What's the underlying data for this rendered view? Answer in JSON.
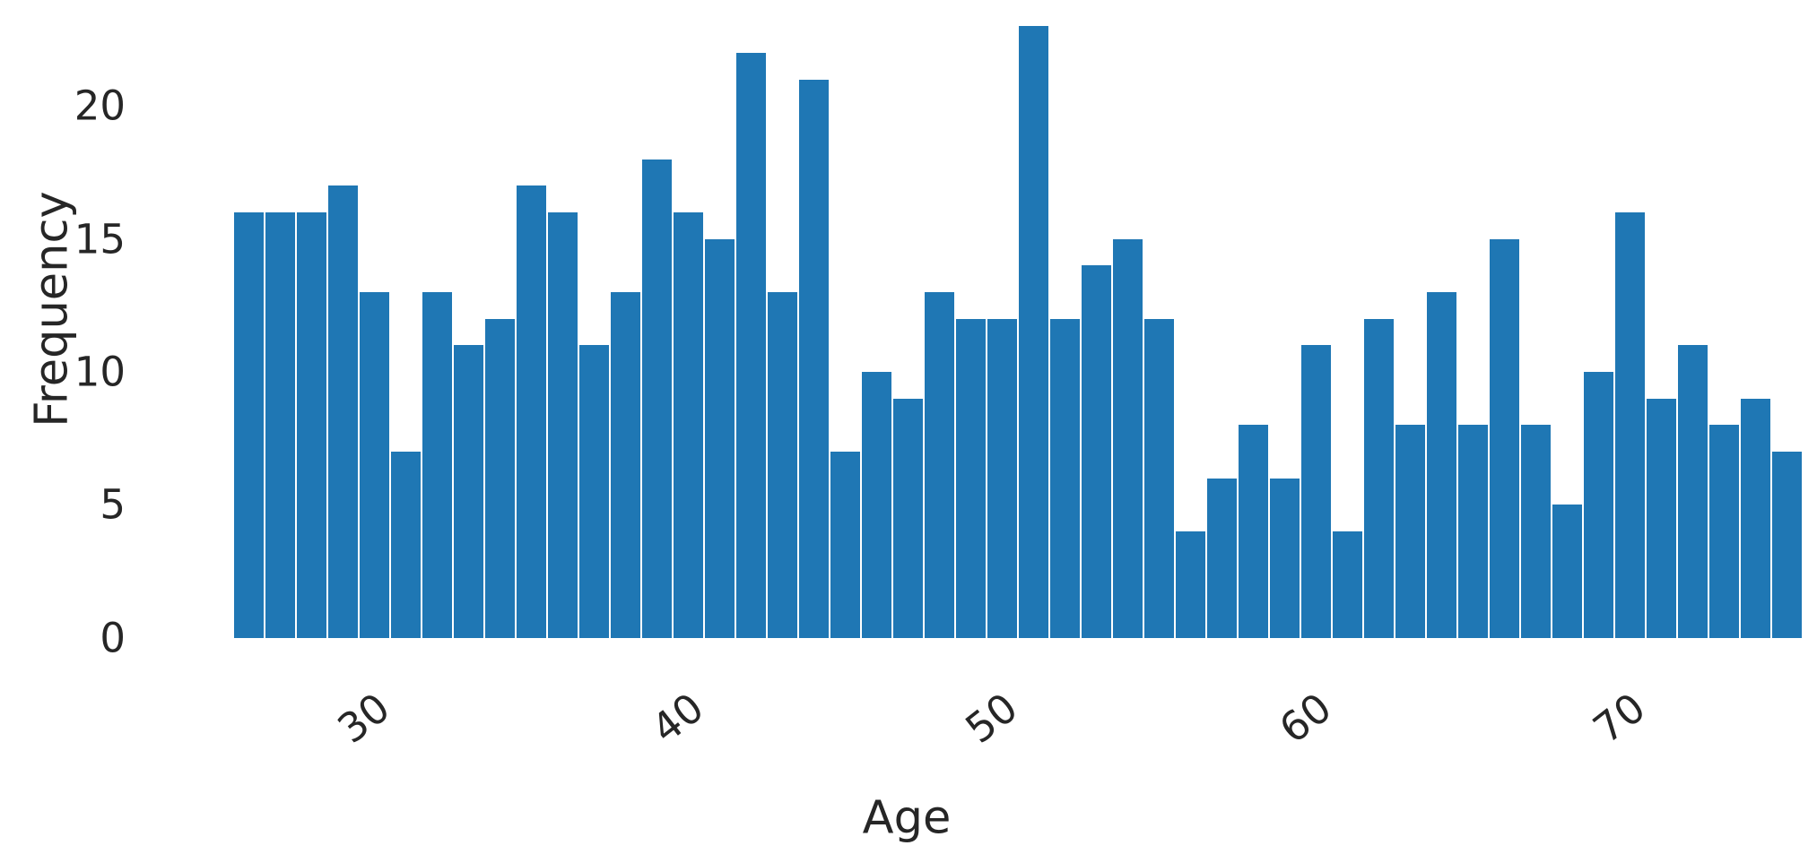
{
  "chart_data": {
    "type": "bar",
    "subtype": "histogram",
    "title": "",
    "xlabel": "Age",
    "ylabel": "Frequency",
    "ages": [
      26,
      27,
      28,
      29,
      30,
      31,
      32,
      33,
      34,
      35,
      36,
      37,
      38,
      39,
      40,
      41,
      42,
      43,
      44,
      45,
      46,
      47,
      48,
      49,
      50,
      51,
      52,
      53,
      54,
      55,
      56,
      57,
      58,
      59,
      60,
      61,
      62,
      63,
      64,
      65,
      66,
      67,
      68,
      69,
      70,
      71,
      72,
      73,
      74,
      75
    ],
    "counts": [
      16,
      16,
      16,
      17,
      13,
      7,
      13,
      11,
      12,
      17,
      16,
      11,
      13,
      18,
      16,
      15,
      22,
      13,
      21,
      7,
      10,
      9,
      13,
      12,
      12,
      23,
      12,
      14,
      15,
      12,
      4,
      6,
      8,
      6,
      11,
      4,
      12,
      8,
      13,
      8,
      15,
      8,
      5,
      10,
      16,
      9,
      11,
      8,
      9,
      7
    ],
    "total_observations": 600,
    "bin_width": 1,
    "xticks": [
      30,
      40,
      50,
      60,
      70
    ],
    "yticks": [
      0,
      5,
      10,
      15,
      20
    ],
    "xlim": [
      25.5,
      75.5
    ],
    "ylim": [
      0,
      24
    ],
    "grid": false,
    "legend": null,
    "spines": false,
    "xtick_rotation_deg": 38,
    "bar_color": "#1f77b4",
    "bar_gap_color": "#ffffff",
    "text_color": "#262626",
    "background_color": "#ffffff"
  }
}
